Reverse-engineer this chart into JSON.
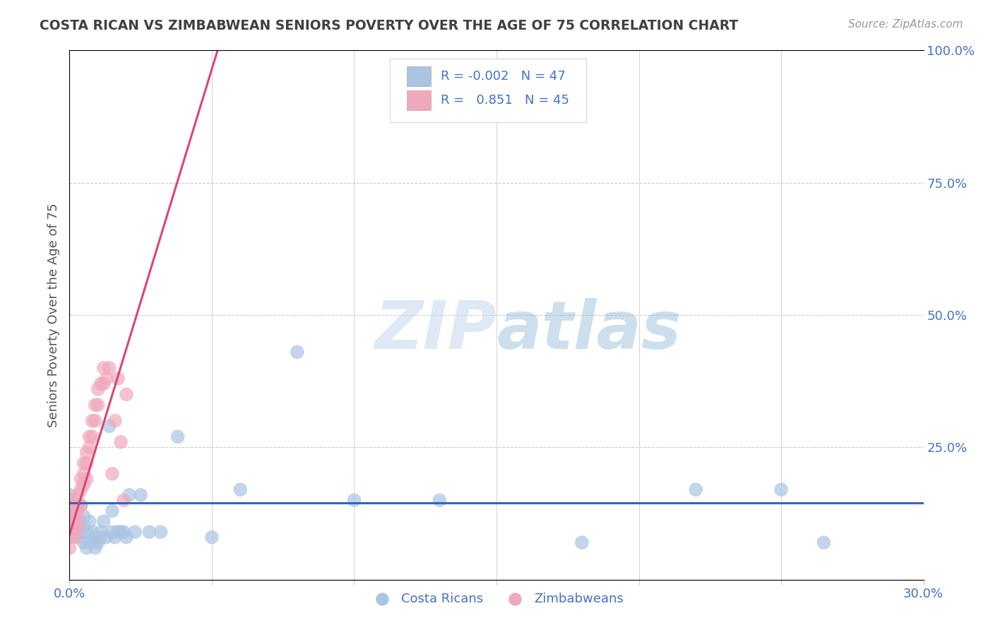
{
  "title": "COSTA RICAN VS ZIMBABWEAN SENIORS POVERTY OVER THE AGE OF 75 CORRELATION CHART",
  "source": "Source: ZipAtlas.com",
  "ylabel": "Seniors Poverty Over the Age of 75",
  "xlim": [
    0.0,
    0.3
  ],
  "ylim": [
    0.0,
    1.0
  ],
  "xticks": [
    0.0,
    0.05,
    0.1,
    0.15,
    0.2,
    0.25,
    0.3
  ],
  "xtick_labels": [
    "0.0%",
    "",
    "",
    "",
    "",
    "",
    "30.0%"
  ],
  "yticks": [
    0.0,
    0.25,
    0.5,
    0.75,
    1.0
  ],
  "ytick_labels": [
    "",
    "25.0%",
    "50.0%",
    "75.0%",
    "100.0%"
  ],
  "costa_rican_color": "#aac4e2",
  "zimbabwean_color": "#f0a8bc",
  "trend_costa_color": "#3366bb",
  "trend_zimb_color": "#dd4477",
  "R_costa": -0.002,
  "N_costa": 47,
  "R_zimb": 0.851,
  "N_zimb": 45,
  "watermark_color": "#c5d8ee",
  "background_color": "#ffffff",
  "grid_color": "#cccccc",
  "title_color": "#404040",
  "axis_label_color": "#555555",
  "tick_color": "#4472c4",
  "source_color": "#999999",
  "cr_x": [
    0.0,
    0.001,
    0.001,
    0.002,
    0.002,
    0.003,
    0.003,
    0.004,
    0.004,
    0.005,
    0.005,
    0.005,
    0.006,
    0.006,
    0.007,
    0.007,
    0.008,
    0.009,
    0.009,
    0.01,
    0.011,
    0.011,
    0.012,
    0.013,
    0.014,
    0.015,
    0.015,
    0.016,
    0.017,
    0.018,
    0.019,
    0.02,
    0.021,
    0.023,
    0.025,
    0.028,
    0.032,
    0.038,
    0.05,
    0.06,
    0.08,
    0.1,
    0.13,
    0.18,
    0.22,
    0.25,
    0.265
  ],
  "cr_y": [
    0.16,
    0.12,
    0.1,
    0.09,
    0.13,
    0.08,
    0.11,
    0.09,
    0.14,
    0.07,
    0.1,
    0.12,
    0.06,
    0.09,
    0.07,
    0.11,
    0.09,
    0.06,
    0.08,
    0.07,
    0.09,
    0.08,
    0.11,
    0.08,
    0.29,
    0.09,
    0.13,
    0.08,
    0.09,
    0.09,
    0.09,
    0.08,
    0.16,
    0.09,
    0.16,
    0.09,
    0.09,
    0.27,
    0.08,
    0.17,
    0.43,
    0.15,
    0.15,
    0.07,
    0.17,
    0.17,
    0.07
  ],
  "zw_x": [
    0.0,
    0.0,
    0.0,
    0.0,
    0.0,
    0.001,
    0.001,
    0.001,
    0.001,
    0.002,
    0.002,
    0.002,
    0.002,
    0.003,
    0.003,
    0.003,
    0.003,
    0.004,
    0.004,
    0.004,
    0.005,
    0.005,
    0.005,
    0.006,
    0.006,
    0.006,
    0.007,
    0.007,
    0.008,
    0.008,
    0.009,
    0.009,
    0.01,
    0.01,
    0.011,
    0.012,
    0.012,
    0.013,
    0.014,
    0.015,
    0.016,
    0.017,
    0.018,
    0.019,
    0.02
  ],
  "zw_y": [
    0.14,
    0.12,
    0.1,
    0.08,
    0.06,
    0.15,
    0.13,
    0.11,
    0.09,
    0.14,
    0.12,
    0.1,
    0.08,
    0.16,
    0.14,
    0.12,
    0.1,
    0.19,
    0.17,
    0.14,
    0.22,
    0.2,
    0.18,
    0.24,
    0.22,
    0.19,
    0.27,
    0.25,
    0.3,
    0.27,
    0.33,
    0.3,
    0.36,
    0.33,
    0.37,
    0.4,
    0.37,
    0.38,
    0.4,
    0.2,
    0.3,
    0.38,
    0.26,
    0.15,
    0.35
  ],
  "trend_zw_x0": 0.0,
  "trend_zw_y0": 0.085,
  "trend_zw_x1": 0.052,
  "trend_zw_y1": 1.0,
  "trend_cr_y": 0.145
}
